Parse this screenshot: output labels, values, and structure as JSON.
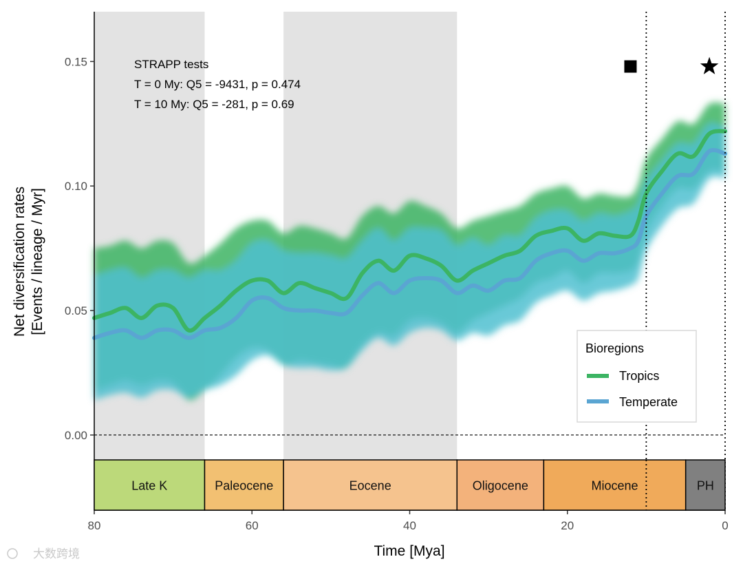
{
  "chart_data": {
    "type": "line",
    "title": "",
    "xlabel": "Time [Mya]",
    "ylabel": "Net diversification rates",
    "ylabel_line2": "[Events / lineage / Myr]",
    "xlim": [
      80,
      0
    ],
    "ylim": [
      -0.01,
      0.17
    ],
    "x_ticks": [
      80,
      60,
      40,
      20,
      0
    ],
    "x_tick_labels": [
      "80",
      "60",
      "40",
      "20",
      "0"
    ],
    "y_ticks": [
      0.0,
      0.05,
      0.1,
      0.15
    ],
    "y_tick_labels": [
      "0.00",
      "0.05",
      "0.10",
      "0.15"
    ],
    "x": [
      80,
      78,
      76,
      74,
      72,
      70,
      68,
      66,
      64,
      62,
      60,
      58,
      56,
      54,
      52,
      50,
      48,
      46,
      44,
      42,
      40,
      38,
      36,
      34,
      32,
      30,
      28,
      26,
      24,
      22,
      20,
      18,
      16,
      14,
      12,
      11,
      10,
      8,
      6,
      4,
      2,
      0
    ],
    "series": [
      {
        "name": "Tropics",
        "color": "#3cb463",
        "values": [
          0.047,
          0.049,
          0.051,
          0.047,
          0.052,
          0.051,
          0.042,
          0.047,
          0.052,
          0.058,
          0.062,
          0.062,
          0.057,
          0.061,
          0.059,
          0.057,
          0.055,
          0.065,
          0.07,
          0.066,
          0.072,
          0.071,
          0.068,
          0.062,
          0.066,
          0.069,
          0.072,
          0.074,
          0.08,
          0.082,
          0.083,
          0.078,
          0.081,
          0.08,
          0.08,
          0.086,
          0.097,
          0.106,
          0.113,
          0.112,
          0.121,
          0.122
        ],
        "lower": [
          0.018,
          0.02,
          0.022,
          0.02,
          0.022,
          0.021,
          0.014,
          0.018,
          0.024,
          0.031,
          0.035,
          0.034,
          0.028,
          0.03,
          0.029,
          0.028,
          0.027,
          0.036,
          0.041,
          0.04,
          0.046,
          0.047,
          0.045,
          0.041,
          0.046,
          0.049,
          0.052,
          0.055,
          0.061,
          0.063,
          0.066,
          0.061,
          0.065,
          0.065,
          0.066,
          0.07,
          0.082,
          0.092,
          0.099,
          0.099,
          0.106,
          0.106
        ],
        "upper": [
          0.075,
          0.076,
          0.078,
          0.075,
          0.078,
          0.077,
          0.069,
          0.072,
          0.077,
          0.083,
          0.086,
          0.086,
          0.081,
          0.084,
          0.083,
          0.081,
          0.079,
          0.088,
          0.092,
          0.089,
          0.094,
          0.092,
          0.089,
          0.083,
          0.086,
          0.088,
          0.09,
          0.092,
          0.097,
          0.099,
          0.1,
          0.095,
          0.097,
          0.096,
          0.096,
          0.101,
          0.111,
          0.119,
          0.126,
          0.125,
          0.133,
          0.133
        ]
      },
      {
        "name": "Temperate",
        "color": "#5aa5d2",
        "values": [
          0.039,
          0.041,
          0.042,
          0.039,
          0.042,
          0.042,
          0.039,
          0.042,
          0.043,
          0.047,
          0.054,
          0.055,
          0.051,
          0.05,
          0.05,
          0.049,
          0.049,
          0.056,
          0.061,
          0.057,
          0.062,
          0.063,
          0.062,
          0.057,
          0.06,
          0.058,
          0.062,
          0.063,
          0.07,
          0.073,
          0.074,
          0.07,
          0.073,
          0.073,
          0.075,
          0.078,
          0.088,
          0.097,
          0.104,
          0.105,
          0.114,
          0.113
        ],
        "lower": [
          0.014,
          0.016,
          0.017,
          0.015,
          0.018,
          0.018,
          0.015,
          0.018,
          0.02,
          0.024,
          0.03,
          0.032,
          0.028,
          0.027,
          0.027,
          0.026,
          0.027,
          0.034,
          0.039,
          0.036,
          0.041,
          0.043,
          0.042,
          0.038,
          0.041,
          0.04,
          0.044,
          0.046,
          0.053,
          0.056,
          0.058,
          0.054,
          0.057,
          0.058,
          0.06,
          0.063,
          0.074,
          0.084,
          0.091,
          0.093,
          0.103,
          0.103
        ],
        "upper": [
          0.064,
          0.066,
          0.067,
          0.063,
          0.066,
          0.066,
          0.063,
          0.066,
          0.066,
          0.07,
          0.077,
          0.078,
          0.074,
          0.073,
          0.073,
          0.072,
          0.071,
          0.078,
          0.083,
          0.078,
          0.083,
          0.083,
          0.082,
          0.076,
          0.079,
          0.076,
          0.08,
          0.08,
          0.087,
          0.09,
          0.09,
          0.086,
          0.089,
          0.088,
          0.09,
          0.093,
          0.102,
          0.11,
          0.117,
          0.117,
          0.125,
          0.123
        ]
      }
    ],
    "shaded_periods": [
      {
        "from": 80,
        "to": 66,
        "color": "#e3e3e3"
      },
      {
        "from": 56,
        "to": 34,
        "color": "#e3e3e3"
      }
    ],
    "vlines": [
      10,
      0
    ],
    "hline": 0.0,
    "epochs": [
      {
        "label": "Late K",
        "from": 80,
        "to": 66,
        "color": "#bcd97a"
      },
      {
        "label": "Paleocene",
        "from": 66,
        "to": 56,
        "color": "#f2c072"
      },
      {
        "label": "Eocene",
        "from": 56,
        "to": 34,
        "color": "#f5c38e"
      },
      {
        "label": "Oligocene",
        "from": 34,
        "to": 23,
        "color": "#f3b27b"
      },
      {
        "label": "Miocene",
        "from": 23,
        "to": 5,
        "color": "#f0aa5a"
      },
      {
        "label": "PH",
        "from": 5,
        "to": 0,
        "color": "#808080"
      }
    ],
    "markers": [
      {
        "symbol": "square",
        "x": 12,
        "y": 0.148
      },
      {
        "symbol": "star",
        "x": 2,
        "y": 0.148
      }
    ],
    "annotation": {
      "title": "STRAPP tests",
      "line1": "T = 0 My: Q5 = -9431, p = 0.474",
      "line2": "T = 10 My: Q5 = -281, p = 0.69"
    },
    "legend": {
      "title": "Bioregions",
      "position": "bottom-right",
      "entries": [
        "Tropics",
        "Temperate"
      ]
    }
  },
  "watermark": "大数跨境"
}
